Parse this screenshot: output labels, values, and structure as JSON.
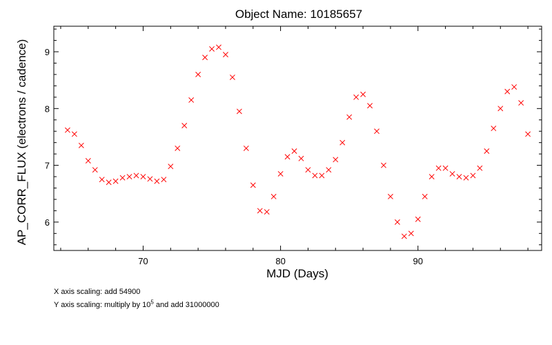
{
  "chart_data": {
    "type": "scatter",
    "title": "Object Name:  10185657",
    "xlabel": "MJD (Days)",
    "ylabel": "AP_CORR_FLUX (electrons / cadence)",
    "xlim": [
      63.5,
      99.0
    ],
    "ylim": [
      5.5,
      9.45
    ],
    "x_ticks": [
      70,
      80,
      90
    ],
    "y_ticks": [
      6,
      7,
      8,
      9
    ],
    "grid": false,
    "marker": "x",
    "marker_color": "#ff0000",
    "series": [
      {
        "x": [
          64.5,
          65.0,
          65.5,
          66.0,
          66.5,
          67.0,
          67.5,
          68.0,
          68.5,
          69.0,
          69.5,
          70.0,
          70.5,
          71.0,
          71.5,
          72.0,
          72.5,
          73.0,
          73.5,
          74.0,
          74.5,
          75.0,
          75.5,
          76.0,
          76.5,
          77.0,
          77.5,
          78.0,
          78.5,
          79.0,
          79.5,
          80.0,
          80.5,
          81.0,
          81.5,
          82.0,
          82.5,
          83.0,
          83.5,
          84.0,
          84.5,
          85.0,
          85.5,
          86.0,
          86.5,
          87.0,
          87.5,
          88.0,
          88.5,
          89.0,
          89.5,
          90.0,
          90.5,
          91.0,
          91.5,
          92.0,
          92.5,
          93.0,
          93.5,
          94.0,
          94.5,
          95.0,
          95.5,
          96.0,
          96.5,
          97.0,
          97.5,
          98.0
        ],
        "y": [
          7.62,
          7.55,
          7.35,
          7.08,
          6.92,
          6.75,
          6.7,
          6.72,
          6.78,
          6.8,
          6.82,
          6.8,
          6.76,
          6.72,
          6.75,
          6.98,
          7.3,
          7.7,
          8.15,
          8.6,
          8.9,
          9.05,
          9.08,
          8.95,
          8.55,
          7.95,
          7.3,
          6.65,
          6.2,
          6.18,
          6.45,
          6.85,
          7.15,
          7.25,
          7.12,
          6.92,
          6.82,
          6.82,
          6.92,
          7.1,
          7.4,
          7.85,
          8.2,
          8.25,
          8.05,
          7.6,
          7.0,
          6.45,
          6.0,
          5.75,
          5.8,
          6.05,
          6.45,
          6.8,
          6.95,
          6.95,
          6.85,
          6.8,
          6.78,
          6.82,
          6.95,
          7.25,
          7.65,
          8.0,
          8.3,
          8.38,
          8.1,
          7.55
        ]
      }
    ]
  },
  "notes": {
    "x_scaling": "X axis scaling: add 54900",
    "y_scaling_prefix": "Y axis scaling: multiply by 10",
    "y_scaling_exp": "5",
    "y_scaling_suffix": " and add 31000000"
  }
}
